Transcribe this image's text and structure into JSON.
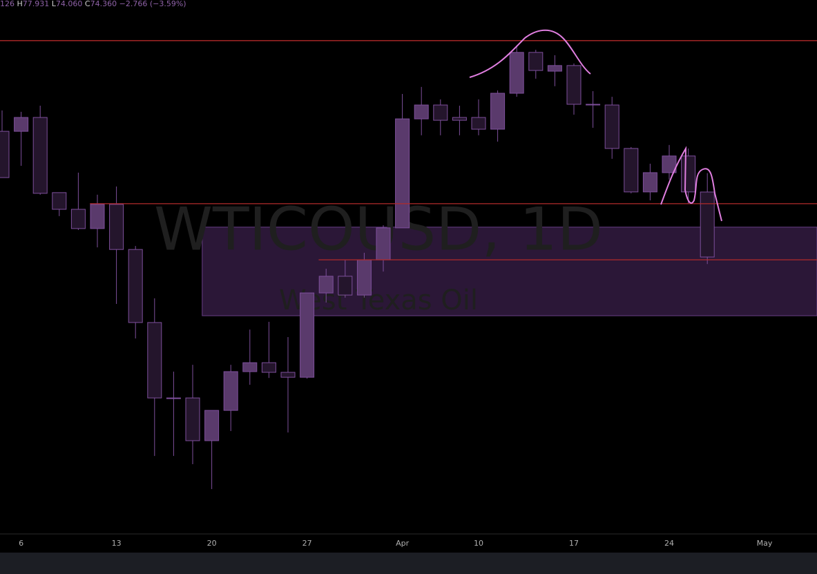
{
  "header": {
    "open_fragment": "126",
    "high_label": "H",
    "high": "77.931",
    "low_label": "L",
    "low": "74.060",
    "close_label": "C",
    "close": "74.360",
    "change": "−2.766",
    "change_pct": "(−3.59%)"
  },
  "chart_data": {
    "type": "candlestick",
    "watermark": "WTICOUSD, 1D",
    "watermark_subtitle": "West Texas Oil",
    "categories": [
      null,
      "6",
      null,
      null,
      null,
      null,
      "13",
      null,
      null,
      null,
      null,
      "20",
      null,
      null,
      null,
      null,
      "27",
      null,
      null,
      null,
      null,
      "Apr",
      null,
      null,
      null,
      "10",
      null,
      null,
      null,
      null,
      "17",
      null,
      null,
      null,
      null,
      "24",
      null,
      null,
      null,
      null,
      "May",
      null,
      null
    ],
    "open": [
      79.71,
      79.71,
      80.3,
      77.1,
      76.39,
      75.57,
      76.6,
      74.68,
      71.57,
      68.36,
      68.36,
      66.54,
      67.83,
      69.48,
      69.86,
      69.45,
      69.24,
      72.83,
      73.54,
      72.74,
      74.24,
      75.6,
      80.24,
      80.83,
      80.3,
      80.3,
      79.8,
      81.33,
      83.07,
      82.27,
      82.51,
      80.86,
      80.83,
      78.98,
      77.13,
      77.95,
      78.66,
      77.126,
      null,
      null,
      null,
      null,
      null
    ],
    "high": [
      80.6,
      80.54,
      80.8,
      77.1,
      77.95,
      77.01,
      77.36,
      74.83,
      72.6,
      69.48,
      69.77,
      67.83,
      69.77,
      71.27,
      71.6,
      70.95,
      72.83,
      73.86,
      74.24,
      74.54,
      75.71,
      81.3,
      81.6,
      81.07,
      80.8,
      81.07,
      81.45,
      83.36,
      83.18,
      82.95,
      82.6,
      81.42,
      81.18,
      79.04,
      78.33,
      79.13,
      78.98,
      77.931,
      null,
      null,
      null,
      null,
      null
    ],
    "low": [
      77.74,
      78.24,
      77.01,
      76.1,
      75.51,
      74.77,
      72.36,
      70.89,
      65.89,
      65.89,
      65.54,
      64.48,
      66.95,
      68.92,
      69.21,
      66.89,
      69.18,
      72.42,
      72.63,
      72.63,
      73.74,
      75.6,
      79.54,
      79.54,
      79.54,
      79.54,
      79.27,
      81.18,
      81.95,
      81.63,
      80.42,
      79.86,
      78.54,
      77.07,
      76.77,
      77.66,
      76.63,
      74.06,
      null,
      null,
      null,
      null,
      null
    ],
    "close": [
      77.74,
      80.3,
      77.07,
      76.39,
      75.57,
      76.6,
      74.68,
      71.57,
      68.36,
      68.36,
      66.54,
      67.83,
      69.48,
      69.86,
      69.45,
      69.24,
      72.83,
      73.54,
      72.74,
      74.24,
      75.6,
      80.24,
      80.83,
      80.18,
      80.18,
      79.8,
      81.33,
      83.07,
      82.3,
      82.51,
      80.86,
      80.86,
      78.98,
      77.13,
      77.95,
      78.66,
      77.13,
      74.36,
      null,
      null,
      null,
      null,
      null
    ],
    "up_color": "#5a3a6c",
    "down_color": "#24152c",
    "wick_color": "#7e4f9c",
    "ylim": [
      62.57,
      85.3
    ],
    "hlines": [
      {
        "value": 83.57
      },
      {
        "value": 76.63,
        "from": 5
      },
      {
        "value": 74.24,
        "from": 17
      }
    ],
    "hline_color": "#b22a2a",
    "zones": [
      {
        "from": 11,
        "top": 75.63,
        "bottom": 71.86
      }
    ],
    "zone_color": "#3a1f4a"
  }
}
